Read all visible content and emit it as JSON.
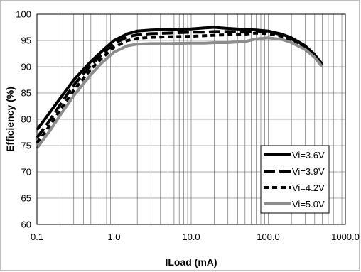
{
  "chart_data": {
    "type": "line",
    "xlabel": "ILoad (mA)",
    "ylabel": "Efficiency (%)",
    "x_scale": "log",
    "xlim": [
      0.1,
      1000
    ],
    "ylim": [
      60,
      100
    ],
    "x_tick_labels": [
      "0.1",
      "1.0",
      "10.0",
      "100.0",
      "1000.0"
    ],
    "y_tick_labels": [
      "60",
      "65",
      "70",
      "75",
      "80",
      "85",
      "90",
      "95",
      "100"
    ],
    "grid": true,
    "legend_position": "bottom-right",
    "series": [
      {
        "name": "Vi=3.6V",
        "color": "#000000",
        "dash": "solid",
        "x": [
          0.1,
          0.15,
          0.2,
          0.3,
          0.5,
          0.7,
          1.0,
          1.5,
          2,
          3,
          5,
          10,
          15,
          20,
          30,
          50,
          70,
          100,
          150,
          200,
          300,
          400,
          500
        ],
        "y": [
          78,
          81.5,
          84,
          87.5,
          91,
          93,
          95,
          96.3,
          96.8,
          97,
          97.1,
          97.2,
          97.4,
          97.5,
          97.3,
          97.1,
          97,
          96.8,
          96.2,
          95.5,
          94,
          92.3,
          90.5
        ]
      },
      {
        "name": "Vi=3.9V",
        "color": "#000000",
        "dash": "long-dash",
        "x": [
          0.1,
          0.15,
          0.2,
          0.3,
          0.5,
          0.7,
          1.0,
          1.5,
          2,
          3,
          5,
          10,
          15,
          20,
          30,
          50,
          70,
          100,
          150,
          200,
          300,
          400,
          500
        ],
        "y": [
          76.5,
          80,
          82.8,
          86.5,
          90.3,
          92.4,
          94.4,
          95.7,
          96.1,
          96.3,
          96.4,
          96.6,
          96.6,
          96.7,
          96.7,
          96.6,
          96.8,
          96.7,
          96.1,
          95.3,
          93.8,
          92.2,
          90.3
        ]
      },
      {
        "name": "Vi=4.2V",
        "color": "#000000",
        "dash": "short-dash",
        "x": [
          0.1,
          0.15,
          0.2,
          0.3,
          0.5,
          0.7,
          1.0,
          1.5,
          2,
          3,
          5,
          10,
          15,
          20,
          30,
          50,
          70,
          100,
          150,
          200,
          300,
          400,
          500
        ],
        "y": [
          75.5,
          79,
          81.8,
          85.5,
          89.5,
          91.7,
          93.7,
          95,
          95.4,
          95.6,
          95.7,
          95.8,
          95.9,
          96,
          96.1,
          96.2,
          96.4,
          96.3,
          95.8,
          95,
          93.5,
          92,
          90.2
        ]
      },
      {
        "name": "Vi=5.0V",
        "color": "#8c8c8c",
        "dash": "solid",
        "x": [
          0.1,
          0.15,
          0.2,
          0.3,
          0.5,
          0.7,
          1.0,
          1.5,
          2,
          3,
          5,
          10,
          15,
          20,
          30,
          50,
          70,
          100,
          150,
          200,
          300,
          400,
          500
        ],
        "y": [
          74.5,
          78,
          80.8,
          84.5,
          88.5,
          90.8,
          92.8,
          94,
          94.3,
          94.4,
          94.4,
          94.5,
          94.5,
          94.6,
          94.6,
          94.8,
          95.3,
          95.5,
          95.2,
          94.6,
          93.3,
          91.8,
          90
        ]
      }
    ]
  }
}
